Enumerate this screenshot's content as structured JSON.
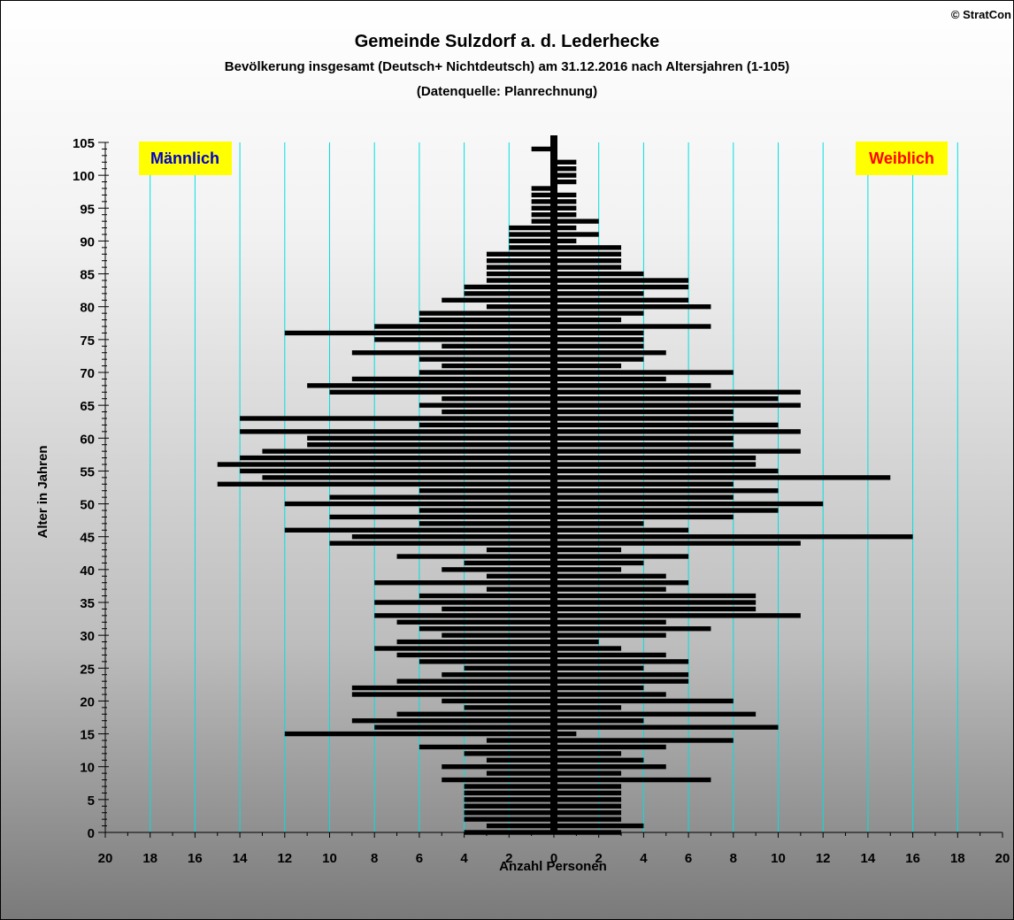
{
  "copyright": "© StratCon",
  "chart_data": {
    "type": "bar",
    "orientation": "horizontal-population-pyramid",
    "title": "Gemeinde Sulzdorf a. d. Lederhecke",
    "subtitle": "Bevölkerung  insgesamt (Deutsch+ Nichtdeutsch) am 31.12.2016 nach Altersjahren (1-105)",
    "source": "(Datenquelle: Planrechnung)",
    "xlabel": "Anzahl Personen",
    "ylabel": "Alter in Jahren",
    "xlim": [
      -20,
      20
    ],
    "ylim": [
      0,
      105
    ],
    "x_ticks": [
      20,
      18,
      16,
      14,
      12,
      10,
      8,
      6,
      4,
      2,
      0,
      2,
      4,
      6,
      8,
      10,
      12,
      14,
      16,
      18,
      20
    ],
    "y_ticks": [
      0,
      5,
      10,
      15,
      20,
      25,
      30,
      35,
      40,
      45,
      50,
      55,
      60,
      65,
      70,
      75,
      80,
      85,
      90,
      95,
      100,
      105
    ],
    "legend_left": "Männlich",
    "legend_right": "Weiblich",
    "grid_x": true,
    "colors": {
      "bars": "#000000",
      "grid": "#00e0e0",
      "label_bg": "#ffff00",
      "male_text": "#0000cc",
      "female_text": "#ff0000"
    },
    "ages": [
      0,
      1,
      2,
      3,
      4,
      5,
      6,
      7,
      8,
      9,
      10,
      11,
      12,
      13,
      14,
      15,
      16,
      17,
      18,
      19,
      20,
      21,
      22,
      23,
      24,
      25,
      26,
      27,
      28,
      29,
      30,
      31,
      32,
      33,
      34,
      35,
      36,
      37,
      38,
      39,
      40,
      41,
      42,
      43,
      44,
      45,
      46,
      47,
      48,
      49,
      50,
      51,
      52,
      53,
      54,
      55,
      56,
      57,
      58,
      59,
      60,
      61,
      62,
      63,
      64,
      65,
      66,
      67,
      68,
      69,
      70,
      71,
      72,
      73,
      74,
      75,
      76,
      77,
      78,
      79,
      80,
      81,
      82,
      83,
      84,
      85,
      86,
      87,
      88,
      89,
      90,
      91,
      92,
      93,
      94,
      95,
      96,
      97,
      98,
      99,
      100,
      101,
      102,
      103,
      104,
      105
    ],
    "series": [
      {
        "name": "Männlich",
        "values": [
          4,
          3,
          4,
          4,
          4,
          4,
          4,
          4,
          5,
          3,
          5,
          3,
          4,
          6,
          3,
          12,
          8,
          9,
          7,
          4,
          5,
          9,
          9,
          7,
          5,
          4,
          6,
          7,
          8,
          7,
          5,
          6,
          7,
          8,
          5,
          8,
          6,
          3,
          8,
          3,
          5,
          4,
          7,
          3,
          10,
          9,
          12,
          6,
          10,
          6,
          12,
          10,
          6,
          15,
          13,
          14,
          15,
          14,
          13,
          11,
          11,
          14,
          6,
          14,
          5,
          6,
          5,
          10,
          11,
          9,
          6,
          5,
          6,
          9,
          5,
          8,
          12,
          8,
          6,
          6,
          3,
          5,
          4,
          4,
          3,
          3,
          3,
          3,
          3,
          2,
          2,
          2,
          2,
          1,
          1,
          1,
          1,
          1,
          1,
          0,
          0,
          0,
          0,
          0,
          1,
          0
        ]
      },
      {
        "name": "Weiblich",
        "values": [
          3,
          4,
          3,
          3,
          3,
          3,
          3,
          3,
          7,
          3,
          5,
          4,
          3,
          5,
          8,
          1,
          10,
          4,
          9,
          3,
          8,
          5,
          4,
          6,
          6,
          4,
          6,
          5,
          3,
          2,
          5,
          7,
          5,
          11,
          9,
          9,
          9,
          5,
          6,
          5,
          3,
          4,
          6,
          3,
          11,
          16,
          6,
          4,
          8,
          10,
          12,
          8,
          10,
          8,
          15,
          10,
          9,
          9,
          11,
          8,
          8,
          11,
          10,
          8,
          8,
          11,
          10,
          11,
          7,
          5,
          8,
          3,
          4,
          5,
          4,
          4,
          4,
          7,
          3,
          4,
          7,
          6,
          4,
          6,
          6,
          4,
          3,
          3,
          3,
          3,
          1,
          2,
          1,
          2,
          1,
          1,
          1,
          1,
          0,
          1,
          1,
          1,
          1,
          0,
          0,
          0
        ]
      }
    ]
  }
}
